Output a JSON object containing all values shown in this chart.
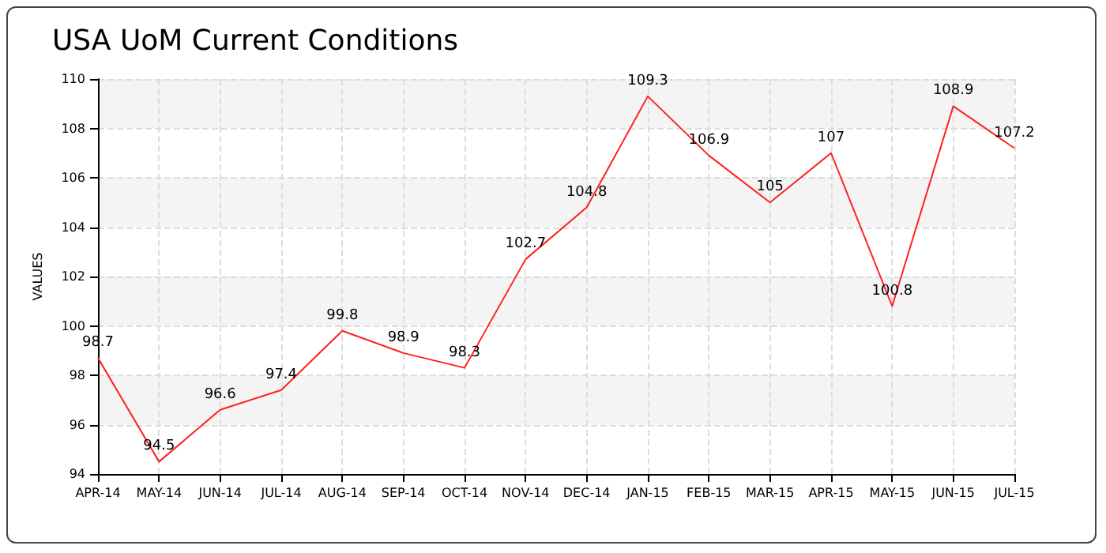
{
  "chart_data": {
    "type": "line",
    "title": "USA UoM Current Conditions",
    "ylabel": "VALUES",
    "categories": [
      "APR-14",
      "MAY-14",
      "JUN-14",
      "JUL-14",
      "AUG-14",
      "SEP-14",
      "OCT-14",
      "NOV-14",
      "DEC-14",
      "JAN-15",
      "FEB-15",
      "MAR-15",
      "APR-15",
      "MAY-15",
      "JUN-15",
      "JUL-15"
    ],
    "series": [
      {
        "color": "#ff2020",
        "values": [
          98.7,
          94.5,
          96.6,
          97.4,
          99.8,
          98.9,
          98.3,
          102.7,
          104.8,
          109.3,
          106.9,
          105,
          107,
          100.8,
          108.9,
          107.2
        ]
      }
    ],
    "ylim": [
      94,
      110
    ],
    "yticks": [
      94,
      96,
      98,
      100,
      102,
      104,
      106,
      108,
      110
    ],
    "grid": true,
    "marker": "none",
    "line_style": "solid",
    "data_labels": true
  }
}
